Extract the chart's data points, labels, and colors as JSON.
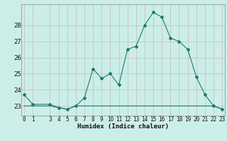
{
  "xlabel": "Humidex (Indice chaleur)",
  "bg_color": "#cceee8",
  "grid_color": "#c8b8b8",
  "line_color": "#1a7a6e",
  "hours": [
    0,
    1,
    3,
    4,
    5,
    6,
    7,
    8,
    9,
    10,
    11,
    12,
    13,
    14,
    15,
    16,
    17,
    18,
    19,
    20,
    21,
    22,
    23
  ],
  "humidex": [
    23.7,
    23.1,
    23.1,
    22.9,
    22.8,
    23.0,
    23.5,
    25.3,
    24.7,
    25.0,
    24.3,
    26.5,
    26.7,
    28.0,
    28.8,
    28.5,
    27.2,
    27.0,
    26.5,
    24.8,
    23.7,
    23.0,
    22.8
  ],
  "flat": [
    23.0,
    23.0,
    23.0,
    22.9,
    22.8,
    23.0,
    23.0,
    23.0,
    23.0,
    23.0,
    23.0,
    23.0,
    23.0,
    23.0,
    23.0,
    23.0,
    23.0,
    23.0,
    23.0,
    23.0,
    23.0,
    23.0,
    22.8
  ],
  "ylim": [
    22.4,
    29.3
  ],
  "yticks": [
    23,
    24,
    25,
    26,
    27,
    28
  ],
  "xlim": [
    -0.3,
    23.3
  ],
  "xticks": [
    0,
    1,
    3,
    4,
    5,
    6,
    7,
    8,
    9,
    10,
    11,
    12,
    13,
    14,
    15,
    16,
    17,
    18,
    19,
    20,
    21,
    22,
    23
  ]
}
